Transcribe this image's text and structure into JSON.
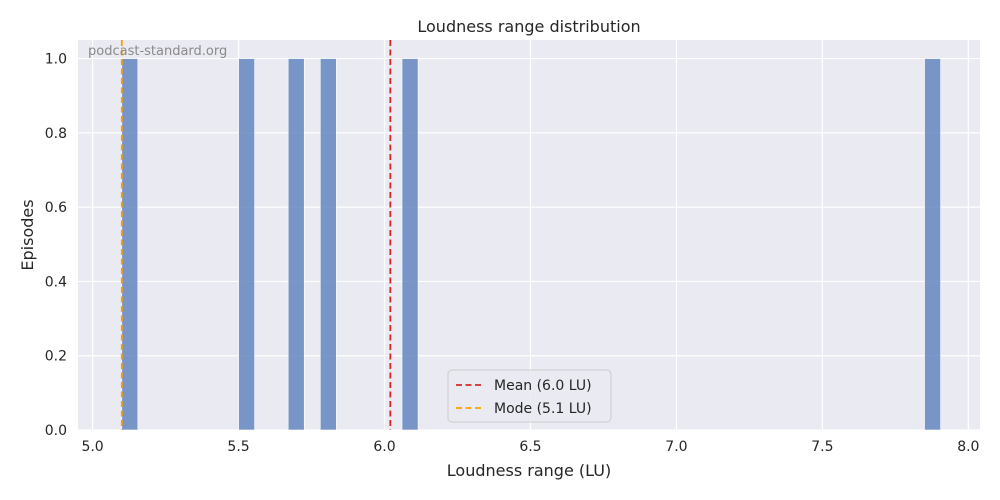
{
  "chart_data": {
    "type": "bar",
    "title": "Loudness range distribution",
    "xlabel": "Loudness range (LU)",
    "ylabel": "Episodes",
    "xlim": [
      4.95,
      8.04
    ],
    "ylim": [
      0,
      1.05
    ],
    "xticks": [
      5.0,
      5.5,
      6.0,
      6.5,
      7.0,
      7.5,
      8.0
    ],
    "xtick_labels": [
      "5.0",
      "5.5",
      "6.0",
      "6.5",
      "7.0",
      "7.5",
      "8.0"
    ],
    "yticks": [
      0.0,
      0.2,
      0.4,
      0.6,
      0.8,
      1.0
    ],
    "ytick_labels": [
      "0.0",
      "0.2",
      "0.4",
      "0.6",
      "0.8",
      "1.0"
    ],
    "grid": true,
    "bin_width": 0.055,
    "bars": [
      {
        "start": 5.1,
        "value": 1
      },
      {
        "start": 5.5,
        "value": 1
      },
      {
        "start": 5.67,
        "value": 1
      },
      {
        "start": 5.78,
        "value": 1
      },
      {
        "start": 6.06,
        "value": 1
      },
      {
        "start": 7.85,
        "value": 1
      }
    ],
    "bar_color": "#5a7fba",
    "reference_lines": [
      {
        "label": "Mean (6.0 LU)",
        "x": 6.02,
        "color": "#d62728"
      },
      {
        "label": "Mode (5.1 LU)",
        "x": 5.1,
        "color": "#ffa000"
      }
    ],
    "legend_position": "lower-center"
  },
  "watermark": "podcast-standard.org",
  "colors": {
    "plot_background": "#eaeaf2",
    "grid": "#ffffff",
    "text": "#262626"
  }
}
